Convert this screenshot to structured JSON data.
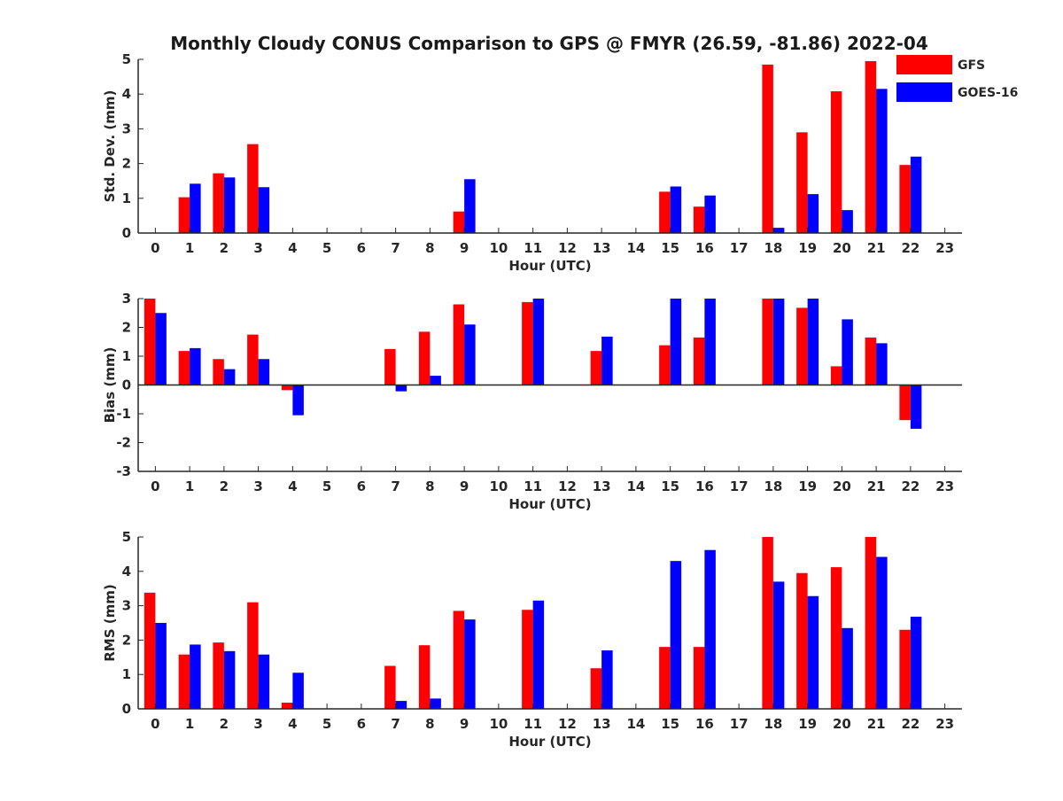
{
  "title": "Monthly Cloudy CONUS Comparison to GPS @ FMYR (26.59, -81.86) 2022-04",
  "colors": {
    "GFS": "#ff0000",
    "GOES-16": "#0000ff",
    "axis": "#262626"
  },
  "legend": {
    "placement": "top-right",
    "items": [
      "GFS",
      "GOES-16"
    ]
  },
  "chart_data": [
    {
      "type": "bar",
      "id": "std",
      "ylabel": "Std. Dev. (mm)",
      "xlabel": "Hour (UTC)",
      "ylim": [
        0,
        5
      ],
      "yticks": [
        0,
        1,
        2,
        3,
        4,
        5
      ],
      "categories": [
        "0",
        "1",
        "2",
        "3",
        "4",
        "5",
        "6",
        "7",
        "8",
        "9",
        "10",
        "11",
        "12",
        "13",
        "14",
        "15",
        "16",
        "17",
        "18",
        "19",
        "20",
        "21",
        "22",
        "23"
      ],
      "series": [
        {
          "name": "GFS",
          "values": [
            0,
            1.03,
            1.72,
            2.56,
            0,
            0,
            0,
            0,
            0,
            0.62,
            0,
            0,
            0,
            0,
            0,
            1.19,
            0.76,
            0,
            4.85,
            2.9,
            4.08,
            4.95,
            1.96,
            0
          ]
        },
        {
          "name": "GOES-16",
          "values": [
            0,
            1.42,
            1.6,
            1.32,
            0,
            0,
            0,
            0,
            0,
            1.55,
            0,
            0,
            0,
            0,
            0,
            1.34,
            1.08,
            0,
            0.15,
            1.12,
            0.66,
            4.15,
            2.2,
            0
          ]
        }
      ]
    },
    {
      "type": "bar",
      "id": "bias",
      "ylabel": "Bias (mm)",
      "xlabel": "Hour (UTC)",
      "ylim": [
        -3,
        3
      ],
      "yticks": [
        -3,
        -2,
        -1,
        0,
        1,
        2,
        3
      ],
      "categories": [
        "0",
        "1",
        "2",
        "3",
        "4",
        "5",
        "6",
        "7",
        "8",
        "9",
        "10",
        "11",
        "12",
        "13",
        "14",
        "15",
        "16",
        "17",
        "18",
        "19",
        "20",
        "21",
        "22",
        "23"
      ],
      "series": [
        {
          "name": "GFS",
          "values": [
            3.0,
            1.18,
            0.9,
            1.75,
            -0.18,
            0,
            0,
            1.25,
            1.85,
            2.8,
            0,
            2.88,
            0,
            1.18,
            0,
            1.38,
            1.65,
            0,
            3.0,
            2.68,
            0.65,
            1.65,
            -1.22,
            0
          ]
        },
        {
          "name": "GOES-16",
          "values": [
            2.5,
            1.28,
            0.55,
            0.9,
            -1.05,
            0,
            0,
            -0.22,
            0.32,
            2.1,
            0,
            3.0,
            0,
            1.68,
            0,
            3.0,
            3.0,
            0,
            3.0,
            3.0,
            2.28,
            1.45,
            -1.52,
            0
          ]
        }
      ]
    },
    {
      "type": "bar",
      "id": "rms",
      "ylabel": "RMS (mm)",
      "xlabel": "Hour (UTC)",
      "ylim": [
        0,
        5
      ],
      "yticks": [
        0,
        1,
        2,
        3,
        4,
        5
      ],
      "categories": [
        "0",
        "1",
        "2",
        "3",
        "4",
        "5",
        "6",
        "7",
        "8",
        "9",
        "10",
        "11",
        "12",
        "13",
        "14",
        "15",
        "16",
        "17",
        "18",
        "19",
        "20",
        "21",
        "22",
        "23"
      ],
      "series": [
        {
          "name": "GFS",
          "values": [
            3.38,
            1.58,
            1.93,
            3.1,
            0.18,
            0,
            0,
            1.25,
            1.85,
            2.85,
            0,
            2.88,
            0,
            1.18,
            0,
            1.8,
            1.8,
            0,
            5.0,
            3.95,
            4.12,
            5.0,
            2.3,
            0
          ]
        },
        {
          "name": "GOES-16",
          "values": [
            2.5,
            1.87,
            1.68,
            1.58,
            1.05,
            0,
            0,
            0.23,
            0.3,
            2.6,
            0,
            3.15,
            0,
            1.7,
            0,
            4.3,
            4.62,
            0,
            3.7,
            3.28,
            2.35,
            4.42,
            2.68,
            0
          ]
        }
      ]
    }
  ]
}
